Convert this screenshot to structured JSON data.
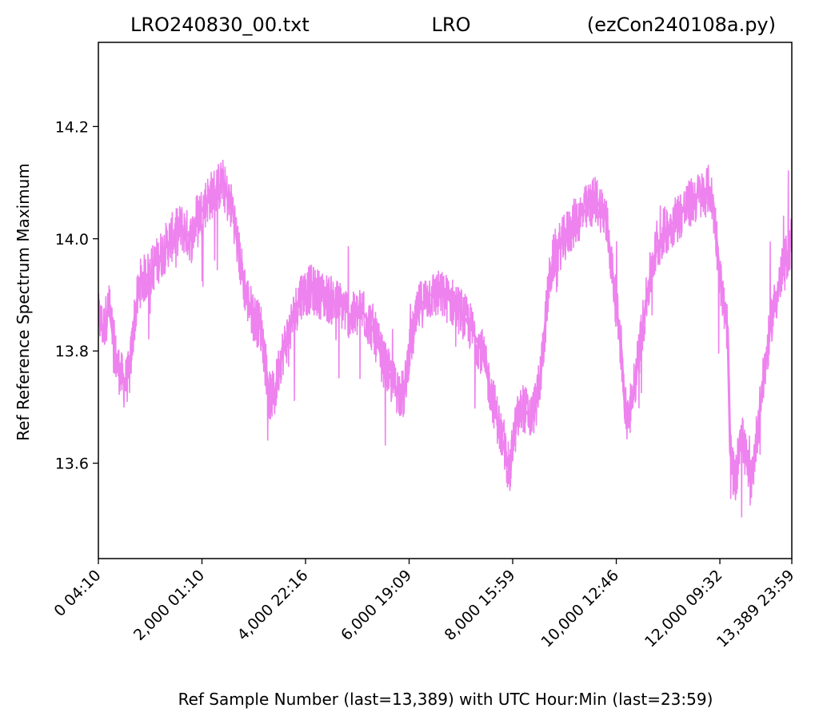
{
  "chart_data": {
    "type": "line",
    "title_left": "LRO240830_00.txt",
    "title_center": "LRO",
    "title_right": "(ezCon240108a.py)",
    "xlabel": "Ref Sample Number (last=13,389) with UTC Hour:Min (last=23:59)",
    "ylabel": "Ref Reference Spectrum Maximum",
    "xlim": [
      0,
      13389
    ],
    "ylim": [
      13.43,
      14.35
    ],
    "grid": false,
    "line_color": "#ee82ee",
    "x_ticks": [
      {
        "value": 0,
        "label": "0  04:10"
      },
      {
        "value": 2000,
        "label": "2,000  01:10"
      },
      {
        "value": 4000,
        "label": "4,000  22:16"
      },
      {
        "value": 6000,
        "label": "6,000  19:09"
      },
      {
        "value": 8000,
        "label": "8,000  15:59"
      },
      {
        "value": 10000,
        "label": "10,000  12:46"
      },
      {
        "value": 12000,
        "label": "12,000  09:32"
      },
      {
        "value": 13389,
        "label": "13,389  23:59"
      }
    ],
    "y_ticks": [
      {
        "value": 13.6,
        "label": "13.6"
      },
      {
        "value": 13.8,
        "label": "13.8"
      },
      {
        "value": 14.0,
        "label": "14.0"
      },
      {
        "value": 14.2,
        "label": "14.2"
      }
    ],
    "series": [
      {
        "x": [
          0,
          100,
          200,
          350,
          500,
          600,
          700,
          800,
          1000,
          1200,
          1400,
          1600,
          1800,
          1900,
          2000,
          2100,
          2200,
          2400,
          2500,
          2600,
          2700,
          2850,
          3000,
          3150,
          3300,
          3400,
          3500,
          3700,
          3900,
          4100,
          4300,
          4500,
          4700,
          4900,
          5100,
          5300,
          5500,
          5700,
          5900,
          6000,
          6200,
          6400,
          6600,
          6800,
          7000,
          7200,
          7400,
          7600,
          7700,
          7800,
          7900,
          7950,
          8000,
          8100,
          8200,
          8350,
          8500,
          8600,
          8700,
          8800,
          9000,
          9200,
          9400,
          9600,
          9800,
          9900,
          10000,
          10100,
          10150,
          10200,
          10300,
          10500,
          10700,
          10900,
          11100,
          11300,
          11500,
          11700,
          11800,
          11900,
          12000,
          12050,
          12100,
          12150,
          12200,
          12300,
          12400,
          12600,
          12800,
          13000,
          13200,
          13389
        ],
        "y": [
          13.86,
          13.84,
          13.88,
          13.78,
          13.74,
          13.76,
          13.86,
          13.92,
          13.94,
          13.97,
          14.0,
          14.02,
          14.0,
          14.04,
          14.05,
          14.07,
          14.08,
          14.1,
          14.07,
          14.05,
          13.98,
          13.9,
          13.86,
          13.84,
          13.72,
          13.72,
          13.78,
          13.84,
          13.9,
          13.91,
          13.9,
          13.89,
          13.88,
          13.86,
          13.87,
          13.84,
          13.78,
          13.74,
          13.72,
          13.8,
          13.88,
          13.9,
          13.9,
          13.89,
          13.87,
          13.84,
          13.8,
          13.72,
          13.68,
          13.64,
          13.6,
          13.58,
          13.64,
          13.68,
          13.7,
          13.68,
          13.72,
          13.82,
          13.92,
          13.97,
          14.0,
          14.03,
          14.05,
          14.07,
          14.04,
          13.96,
          13.88,
          13.8,
          13.72,
          13.68,
          13.7,
          13.84,
          13.96,
          14.01,
          14.03,
          14.05,
          14.07,
          14.08,
          14.09,
          14.04,
          13.93,
          13.9,
          13.86,
          13.84,
          13.62,
          13.56,
          13.66,
          13.56,
          13.72,
          13.86,
          13.94,
          14.0
        ]
      }
    ]
  }
}
